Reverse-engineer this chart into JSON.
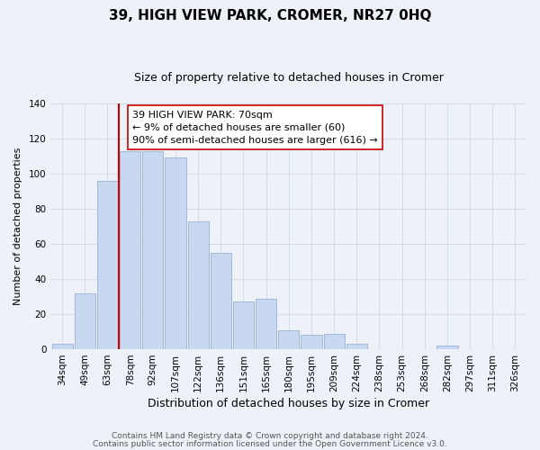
{
  "title": "39, HIGH VIEW PARK, CROMER, NR27 0HQ",
  "subtitle": "Size of property relative to detached houses in Cromer",
  "xlabel": "Distribution of detached houses by size in Cromer",
  "ylabel": "Number of detached properties",
  "bar_labels": [
    "34sqm",
    "49sqm",
    "63sqm",
    "78sqm",
    "92sqm",
    "107sqm",
    "122sqm",
    "136sqm",
    "151sqm",
    "165sqm",
    "180sqm",
    "195sqm",
    "209sqm",
    "224sqm",
    "238sqm",
    "253sqm",
    "268sqm",
    "282sqm",
    "297sqm",
    "311sqm",
    "326sqm"
  ],
  "bar_values": [
    3,
    32,
    96,
    113,
    113,
    109,
    73,
    55,
    27,
    29,
    11,
    8,
    9,
    3,
    0,
    0,
    0,
    2,
    0,
    0,
    0
  ],
  "bar_color": "#c8d8f0",
  "bar_edge_color": "#a0b8d8",
  "grid_color": "#d0dce8",
  "vline_x_idx": 2,
  "vline_color": "#cc0000",
  "annotation_line1": "39 HIGH VIEW PARK: 70sqm",
  "annotation_line2": "← 9% of detached houses are smaller (60)",
  "annotation_line3": "90% of semi-detached houses are larger (616) →",
  "annotation_box_color": "#ffffff",
  "annotation_box_edge": "#cc0000",
  "ylim": [
    0,
    140
  ],
  "yticks": [
    0,
    20,
    40,
    60,
    80,
    100,
    120,
    140
  ],
  "footer_line1": "Contains HM Land Registry data © Crown copyright and database right 2024.",
  "footer_line2": "Contains public sector information licensed under the Open Government Licence v3.0.",
  "background_color": "#eef2f8",
  "title_fontsize": 11,
  "subtitle_fontsize": 9,
  "xlabel_fontsize": 9,
  "ylabel_fontsize": 8,
  "tick_fontsize": 7.5,
  "annotation_fontsize": 8,
  "footer_fontsize": 6.5
}
